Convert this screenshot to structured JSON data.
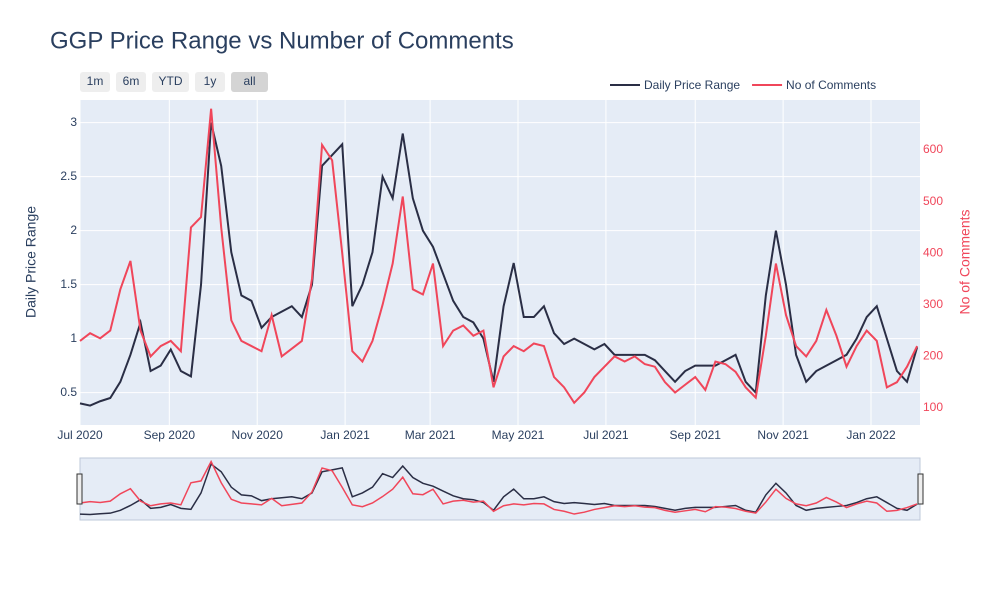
{
  "chart_data": {
    "type": "line",
    "title": "GGP Price Range vs Number of Comments",
    "y_label": "Daily Price Range",
    "y2_label": "No of Comments",
    "range_buttons": [
      "1m",
      "6m",
      "YTD",
      "1y",
      "all"
    ],
    "legend": "top-right",
    "grid": true,
    "x": [
      "2020-07-01",
      "2020-07-08",
      "2020-07-15",
      "2020-07-22",
      "2020-07-29",
      "2020-08-05",
      "2020-08-12",
      "2020-08-19",
      "2020-08-26",
      "2020-09-02",
      "2020-09-09",
      "2020-09-16",
      "2020-09-23",
      "2020-09-30",
      "2020-10-07",
      "2020-10-14",
      "2020-10-21",
      "2020-10-28",
      "2020-11-04",
      "2020-11-11",
      "2020-11-18",
      "2020-11-25",
      "2020-12-02",
      "2020-12-09",
      "2020-12-16",
      "2020-12-23",
      "2020-12-30",
      "2021-01-06",
      "2021-01-13",
      "2021-01-20",
      "2021-01-27",
      "2021-02-03",
      "2021-02-10",
      "2021-02-17",
      "2021-02-24",
      "2021-03-03",
      "2021-03-10",
      "2021-03-17",
      "2021-03-24",
      "2021-03-31",
      "2021-04-07",
      "2021-04-14",
      "2021-04-21",
      "2021-04-28",
      "2021-05-05",
      "2021-05-12",
      "2021-05-19",
      "2021-05-26",
      "2021-06-02",
      "2021-06-09",
      "2021-06-16",
      "2021-06-23",
      "2021-06-30",
      "2021-07-07",
      "2021-07-14",
      "2021-07-21",
      "2021-07-28",
      "2021-08-04",
      "2021-08-11",
      "2021-08-18",
      "2021-08-25",
      "2021-09-01",
      "2021-09-08",
      "2021-09-15",
      "2021-09-22",
      "2021-09-29",
      "2021-10-06",
      "2021-10-13",
      "2021-10-20",
      "2021-10-27",
      "2021-11-03",
      "2021-11-10",
      "2021-11-17",
      "2021-11-24",
      "2021-12-01",
      "2021-12-08",
      "2021-12-15",
      "2021-12-22",
      "2021-12-29",
      "2022-01-05",
      "2022-01-12",
      "2022-01-19",
      "2022-01-26",
      "2022-02-02"
    ],
    "series": [
      {
        "name": "Daily Price Range",
        "color": "#2a2e45",
        "values": [
          0.4,
          0.38,
          0.42,
          0.45,
          0.6,
          0.85,
          1.15,
          0.7,
          0.75,
          0.9,
          0.7,
          0.65,
          1.5,
          3.0,
          2.6,
          1.8,
          1.4,
          1.35,
          1.1,
          1.2,
          1.25,
          1.3,
          1.2,
          1.5,
          2.6,
          2.7,
          2.8,
          1.3,
          1.5,
          1.8,
          2.5,
          2.3,
          2.9,
          2.3,
          2.0,
          1.85,
          1.6,
          1.35,
          1.2,
          1.15,
          1.0,
          0.6,
          1.3,
          1.7,
          1.2,
          1.2,
          1.3,
          1.05,
          0.95,
          1.0,
          0.95,
          0.9,
          0.95,
          0.85,
          0.85,
          0.85,
          0.85,
          0.8,
          0.7,
          0.6,
          0.7,
          0.75,
          0.75,
          0.75,
          0.8,
          0.85,
          0.6,
          0.5,
          1.4,
          2.0,
          1.5,
          0.85,
          0.6,
          0.7,
          0.75,
          0.8,
          0.85,
          1.0,
          1.2,
          1.3,
          1.0,
          0.7,
          0.6,
          0.92
        ]
      },
      {
        "name": "No of Comments",
        "color": "#f0465a",
        "axis": "y2",
        "values": [
          230,
          245,
          235,
          250,
          330,
          385,
          250,
          200,
          220,
          230,
          210,
          450,
          470,
          680,
          450,
          270,
          230,
          220,
          210,
          280,
          200,
          215,
          230,
          350,
          610,
          580,
          400,
          210,
          190,
          230,
          300,
          380,
          510,
          330,
          320,
          380,
          220,
          250,
          260,
          240,
          250,
          140,
          200,
          220,
          210,
          225,
          220,
          160,
          140,
          110,
          130,
          160,
          180,
          200,
          190,
          200,
          185,
          180,
          150,
          130,
          145,
          160,
          135,
          190,
          185,
          170,
          140,
          120,
          240,
          380,
          280,
          220,
          200,
          230,
          290,
          240,
          180,
          220,
          250,
          230,
          140,
          150,
          180,
          220
        ]
      }
    ],
    "xlim": [
      "2020-07-01",
      "2022-02-04"
    ],
    "xticks": [
      {
        "value": "2020-07-01",
        "label": "Jul 2020"
      },
      {
        "value": "2020-09-01",
        "label": "Sep 2020"
      },
      {
        "value": "2020-11-01",
        "label": "Nov 2020"
      },
      {
        "value": "2021-01-01",
        "label": "Jan 2021"
      },
      {
        "value": "2021-03-01",
        "label": "Mar 2021"
      },
      {
        "value": "2021-05-01",
        "label": "May 2021"
      },
      {
        "value": "2021-07-01",
        "label": "Jul 2021"
      },
      {
        "value": "2021-09-01",
        "label": "Sep 2021"
      },
      {
        "value": "2021-11-01",
        "label": "Nov 2021"
      },
      {
        "value": "2022-01-01",
        "label": "Jan 2022"
      }
    ],
    "ylim": [
      0.2,
      3.21
    ],
    "yticks": [
      0.5,
      1,
      1.5,
      2,
      2.5,
      3
    ],
    "y2lim": [
      67,
      697
    ],
    "y2ticks": [
      100,
      200,
      300,
      400,
      500,
      600
    ]
  }
}
